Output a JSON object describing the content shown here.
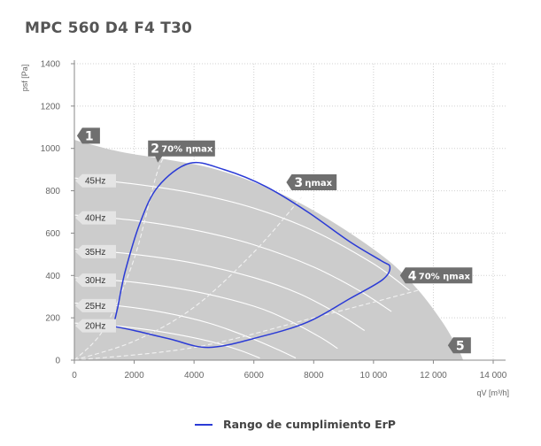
{
  "chart_data": {
    "type": "line",
    "title": "MPC 560 D4 F4 T30",
    "xlabel": "qV [m³/h]",
    "ylabel": "psf [Pa]",
    "xlim": [
      0,
      14000
    ],
    "ylim": [
      0,
      1400
    ],
    "x_ticks": [
      0,
      2000,
      4000,
      6000,
      8000,
      10000,
      12000,
      14000
    ],
    "x_tick_labels": [
      "0",
      "2000",
      "4000",
      "6000",
      "8000",
      "10 000",
      "12 000",
      "14 000"
    ],
    "y_ticks": [
      0,
      200,
      400,
      600,
      800,
      1000,
      1200,
      1400
    ],
    "y_tick_labels": [
      "0",
      "200",
      "400",
      "600",
      "800",
      "1000",
      "1200",
      "1400"
    ],
    "grid": "dotted",
    "envelope": [
      [
        0,
        1040
      ],
      [
        1500,
        985
      ],
      [
        3000,
        950
      ],
      [
        4500,
        910
      ],
      [
        6000,
        840
      ],
      [
        7500,
        745
      ],
      [
        9000,
        620
      ],
      [
        10500,
        470
      ],
      [
        11500,
        330
      ],
      [
        12300,
        180
      ],
      [
        12800,
        60
      ],
      [
        13000,
        0
      ]
    ],
    "frequency_curves": [
      {
        "label": "45Hz",
        "points": [
          [
            0,
            860
          ],
          [
            2000,
            832
          ],
          [
            4000,
            788
          ],
          [
            6000,
            718
          ],
          [
            8000,
            610
          ],
          [
            10000,
            455
          ],
          [
            11200,
            330
          ]
        ]
      },
      {
        "label": "40Hz",
        "points": [
          [
            0,
            685
          ],
          [
            2000,
            660
          ],
          [
            4000,
            615
          ],
          [
            6000,
            545
          ],
          [
            8000,
            440
          ],
          [
            9500,
            330
          ],
          [
            10600,
            230
          ]
        ]
      },
      {
        "label": "35Hz",
        "points": [
          [
            0,
            525
          ],
          [
            2000,
            500
          ],
          [
            4000,
            458
          ],
          [
            6000,
            390
          ],
          [
            7500,
            315
          ],
          [
            8800,
            220
          ],
          [
            9700,
            140
          ]
        ]
      },
      {
        "label": "30Hz",
        "points": [
          [
            0,
            390
          ],
          [
            2000,
            368
          ],
          [
            4000,
            325
          ],
          [
            6000,
            255
          ],
          [
            7200,
            185
          ],
          [
            8200,
            110
          ],
          [
            8800,
            55
          ]
        ]
      },
      {
        "label": "25Hz",
        "points": [
          [
            0,
            270
          ],
          [
            1500,
            256
          ],
          [
            3000,
            225
          ],
          [
            4500,
            175
          ],
          [
            5800,
            110
          ],
          [
            6800,
            50
          ],
          [
            7400,
            10
          ]
        ]
      },
      {
        "label": "20Hz",
        "points": [
          [
            0,
            175
          ],
          [
            1500,
            160
          ],
          [
            3000,
            132
          ],
          [
            4500,
            90
          ],
          [
            5500,
            48
          ],
          [
            6200,
            10
          ]
        ]
      }
    ],
    "efficiency_lines": [
      {
        "label": "70% ηmax",
        "points": [
          [
            0,
            0
          ],
          [
            1000,
            150
          ],
          [
            2000,
            480
          ],
          [
            2800,
            900
          ],
          [
            3300,
            1000
          ]
        ]
      },
      {
        "label": "ηmax",
        "points": [
          [
            0,
            0
          ],
          [
            2000,
            90
          ],
          [
            4000,
            250
          ],
          [
            6000,
            510
          ],
          [
            7600,
            770
          ]
        ]
      },
      {
        "label": "70% ηmax",
        "points": [
          [
            0,
            0
          ],
          [
            4000,
            60
          ],
          [
            8000,
            200
          ],
          [
            11500,
            330
          ]
        ]
      }
    ],
    "erp_range": {
      "name": "Rango de cumplimiento ErP",
      "color": "#2b3bd6",
      "points": [
        [
          1300,
          160
        ],
        [
          1450,
          250
        ],
        [
          1700,
          420
        ],
        [
          2200,
          650
        ],
        [
          2800,
          820
        ],
        [
          3850,
          930
        ],
        [
          5000,
          900
        ],
        [
          6400,
          820
        ],
        [
          7800,
          700
        ],
        [
          9200,
          560
        ],
        [
          10250,
          470
        ],
        [
          10550,
          440
        ],
        [
          10300,
          380
        ],
        [
          9200,
          290
        ],
        [
          7800,
          180
        ],
        [
          6200,
          110
        ],
        [
          4500,
          60
        ],
        [
          3200,
          100
        ],
        [
          2000,
          140
        ],
        [
          1300,
          160
        ]
      ]
    },
    "callouts": [
      {
        "num": "1",
        "text": "",
        "x": 500,
        "y": 1060
      },
      {
        "num": "2",
        "text": "70% ηmax",
        "x": 2700,
        "y": 1000
      },
      {
        "num": "3",
        "text": "ηmax",
        "x": 7500,
        "y": 840
      },
      {
        "num": "4",
        "text": "70% ηmax",
        "x": 11300,
        "y": 400
      },
      {
        "num": "5",
        "text": "",
        "x": 12900,
        "y": 70
      }
    ],
    "legend": {
      "position": "bottom-center",
      "label": "Rango de cumplimiento ErP"
    },
    "colors": {
      "envelope_fill": "#cccccc",
      "curves": "#ffffff",
      "callout_bg": "#6f6f6f",
      "erp": "#2b3bd6"
    }
  }
}
